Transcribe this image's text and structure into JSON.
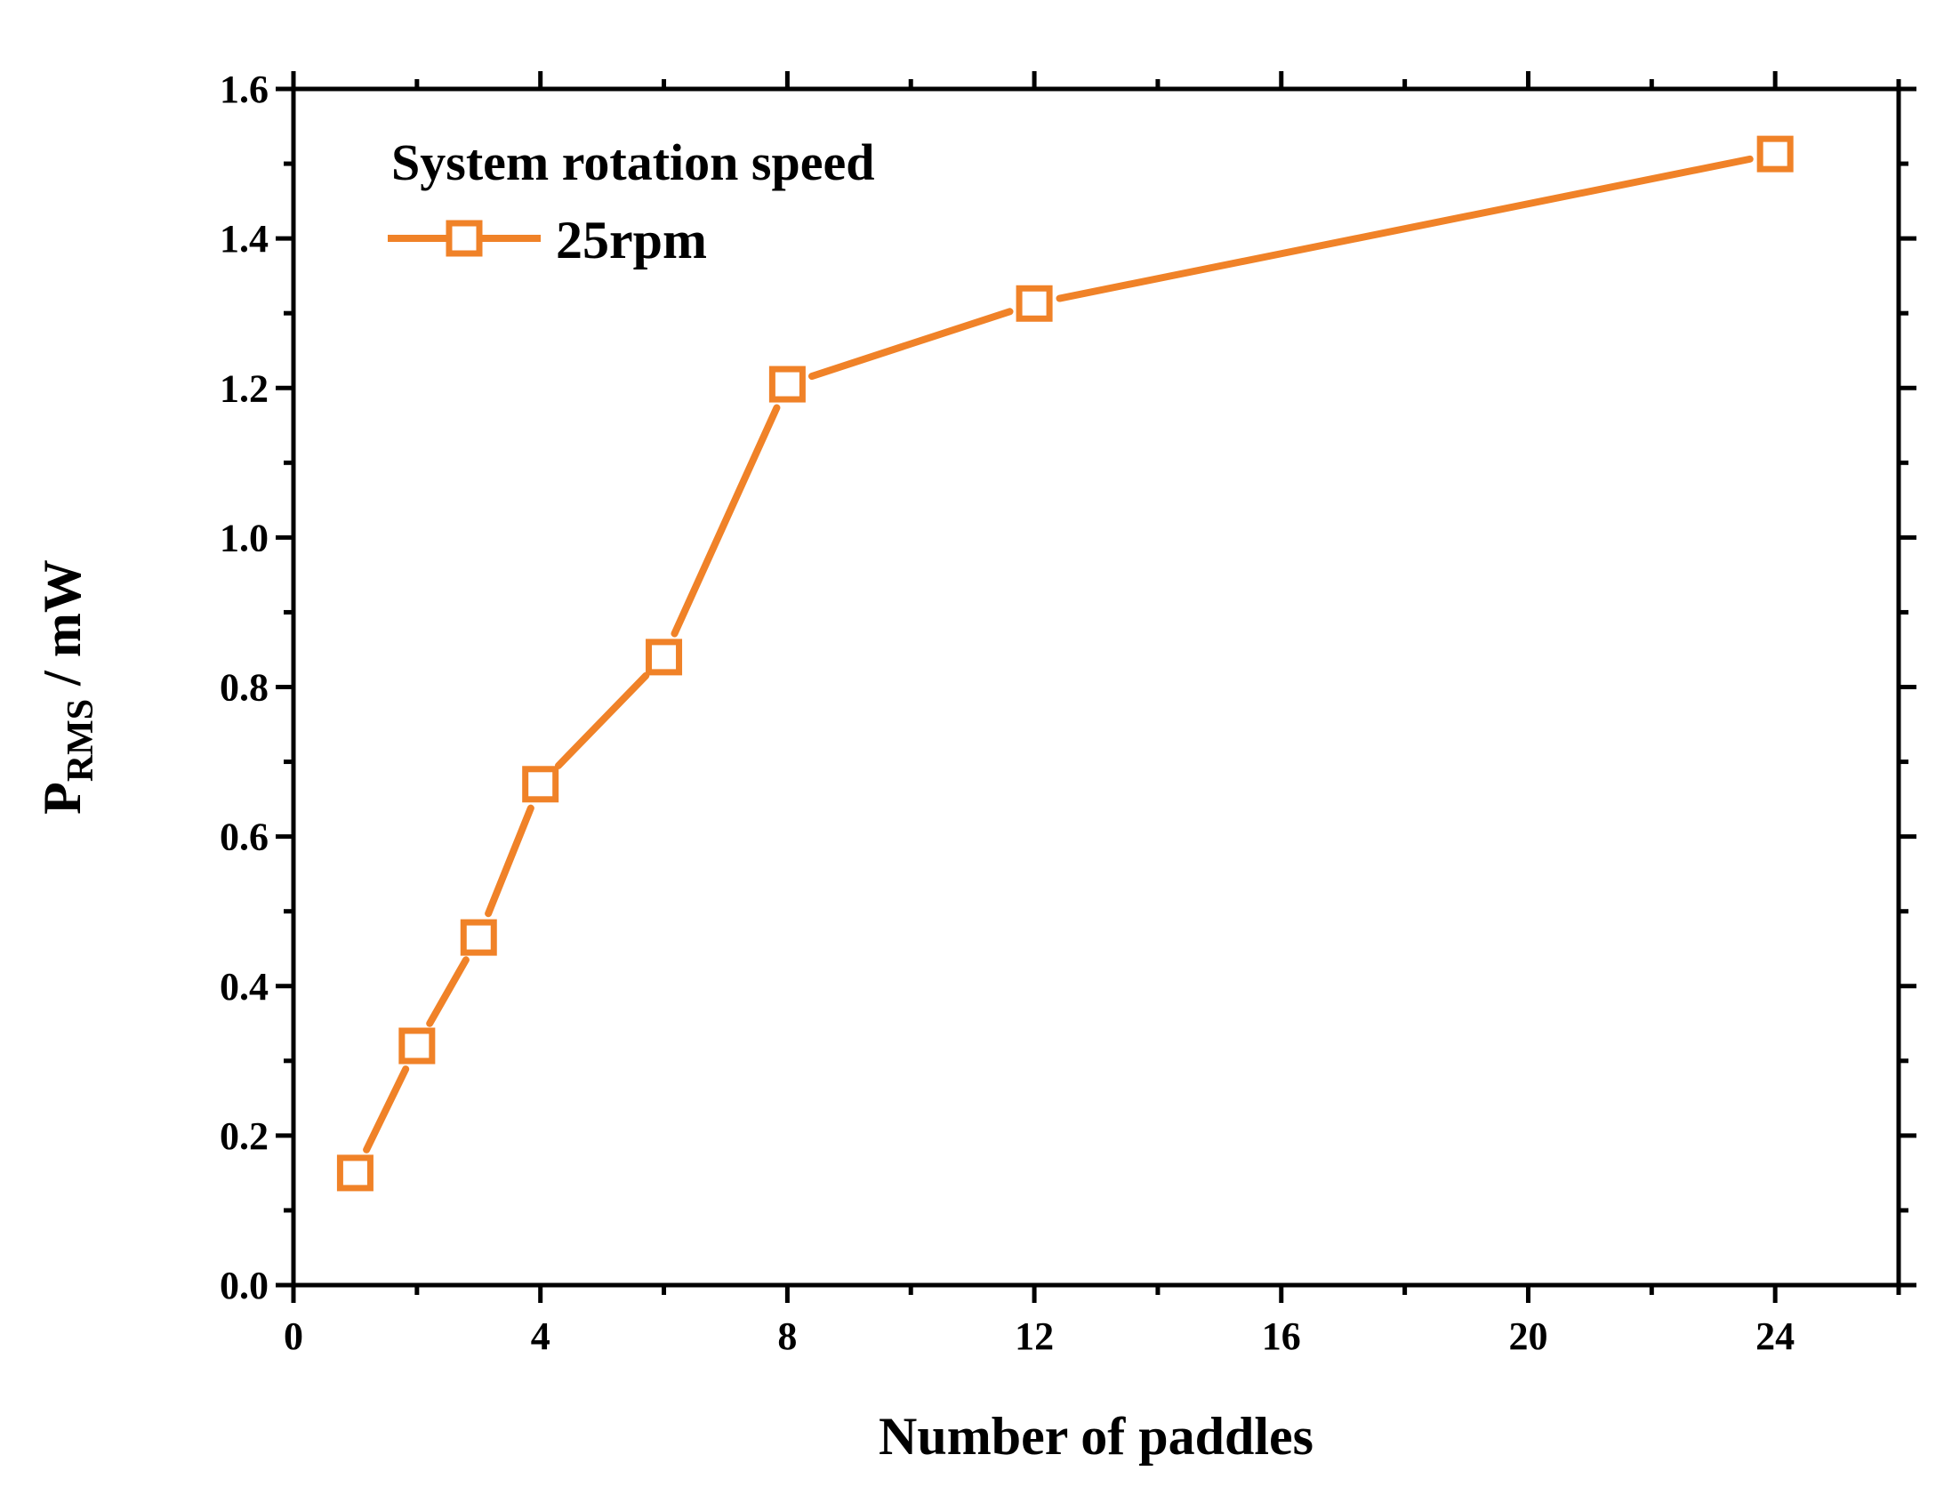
{
  "chart_data": {
    "type": "line",
    "title": "",
    "xlabel": "Number of paddles",
    "ylabel": {
      "main": "P",
      "subscript": "RMS",
      "unit": " / mW"
    },
    "xlim": [
      0,
      26
    ],
    "ylim": [
      0.0,
      1.6
    ],
    "xticks": [
      0,
      4,
      8,
      12,
      16,
      20,
      24
    ],
    "yticks": [
      0.0,
      0.2,
      0.4,
      0.6,
      0.8,
      1.0,
      1.2,
      1.4,
      1.6
    ],
    "xtick_labels": [
      "0",
      "4",
      "8",
      "12",
      "16",
      "20",
      "24"
    ],
    "ytick_labels": [
      "0.0",
      "0.2",
      "0.4",
      "0.6",
      "0.8",
      "1.0",
      "1.2",
      "1.4",
      "1.6"
    ],
    "grid": false,
    "legend": {
      "title": "System rotation speed",
      "position": "top-left"
    },
    "series": [
      {
        "name": "25rpm",
        "color": "#F08228",
        "marker": "open-square",
        "x": [
          1,
          2,
          3,
          4,
          6,
          8,
          12,
          24
        ],
        "y": [
          0.15,
          0.32,
          0.465,
          0.67,
          0.84,
          1.205,
          1.313,
          1.513
        ]
      }
    ]
  }
}
